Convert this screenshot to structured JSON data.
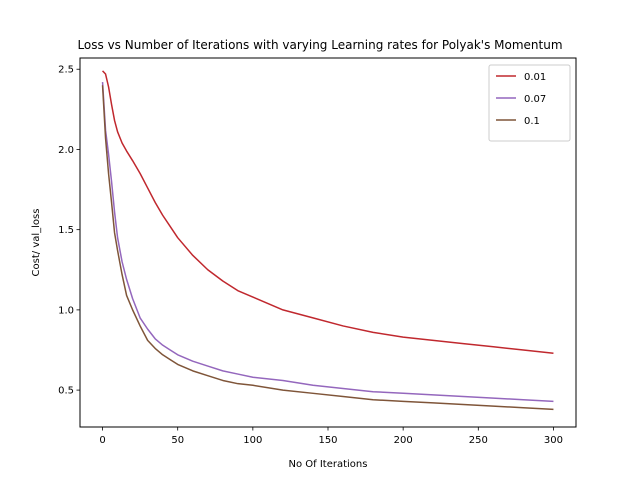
{
  "chart_data": {
    "type": "line",
    "title": "Loss vs Number of Iterations with varying Learning rates for Polyak's Momentum",
    "xlabel": "No Of Iterations",
    "ylabel": "Cost/ val_loss",
    "xlim": [
      -15,
      315
    ],
    "ylim": [
      0.27,
      2.57
    ],
    "x_ticks": [
      0,
      50,
      100,
      150,
      200,
      250,
      300
    ],
    "y_ticks": [
      0.5,
      1.0,
      1.5,
      2.0,
      2.5
    ],
    "x_tick_labels": [
      "0",
      "50",
      "100",
      "150",
      "200",
      "250",
      "300"
    ],
    "y_tick_labels": [
      "0.5",
      "1.0",
      "1.5",
      "2.0",
      "2.5"
    ],
    "grid": false,
    "legend_position": "top-right",
    "x": [
      0,
      2,
      4,
      6,
      8,
      10,
      13,
      16,
      20,
      25,
      30,
      35,
      40,
      45,
      50,
      60,
      70,
      80,
      90,
      100,
      120,
      140,
      160,
      180,
      200,
      220,
      240,
      260,
      280,
      300
    ],
    "series": [
      {
        "name": "0.01",
        "color": "#c0282e",
        "values": [
          2.49,
          2.47,
          2.39,
          2.28,
          2.18,
          2.11,
          2.04,
          1.99,
          1.93,
          1.85,
          1.76,
          1.67,
          1.59,
          1.52,
          1.45,
          1.34,
          1.25,
          1.18,
          1.12,
          1.08,
          1.0,
          0.95,
          0.9,
          0.86,
          0.83,
          0.81,
          0.79,
          0.77,
          0.75,
          0.73
        ]
      },
      {
        "name": "0.07",
        "color": "#9467bd",
        "values": [
          2.42,
          2.12,
          1.97,
          1.8,
          1.61,
          1.45,
          1.3,
          1.19,
          1.07,
          0.95,
          0.88,
          0.82,
          0.78,
          0.75,
          0.72,
          0.68,
          0.65,
          0.62,
          0.6,
          0.58,
          0.56,
          0.53,
          0.51,
          0.49,
          0.48,
          0.47,
          0.46,
          0.45,
          0.44,
          0.43
        ]
      },
      {
        "name": "0.1",
        "color": "#7f5539",
        "values": [
          2.4,
          2.07,
          1.85,
          1.67,
          1.48,
          1.37,
          1.22,
          1.09,
          1.0,
          0.9,
          0.81,
          0.76,
          0.72,
          0.69,
          0.66,
          0.62,
          0.59,
          0.56,
          0.54,
          0.53,
          0.5,
          0.48,
          0.46,
          0.44,
          0.43,
          0.42,
          0.41,
          0.4,
          0.39,
          0.38
        ]
      }
    ]
  }
}
